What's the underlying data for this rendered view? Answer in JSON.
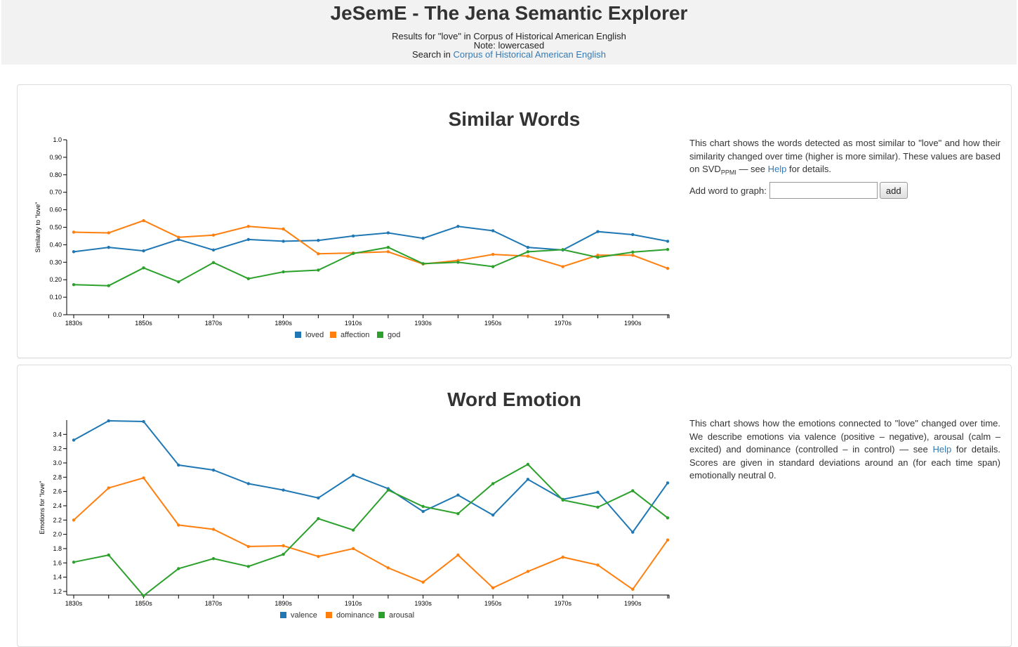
{
  "header": {
    "title": "JeSemE - The Jena Semantic Explorer",
    "results_line": "Results for \"love\" in Corpus of Historical American English",
    "note": "Note: lowercased",
    "search_prefix": "Search in ",
    "search_link": "Corpus of Historical American English"
  },
  "similar": {
    "title": "Similar Words",
    "desc_1": "This chart shows the words detected as most similar to \"love\" and how their similarity changed over time (higher is more similar). These values are based on SVD",
    "desc_sub": "PPMI",
    "desc_2": " — see ",
    "desc_help": "Help",
    "desc_3": " for details.",
    "add_label": "Add word to graph:",
    "add_input_value": "",
    "add_button": "add"
  },
  "emotion": {
    "title": "Word Emotion",
    "desc_1": "This chart shows how the emotions connected to \"love\" changed over time. We describe emotions via valence (positive – negative), arousal (calm – excited) and dominance (controlled – in control) — see ",
    "desc_help": "Help",
    "desc_2": " for details. Scores are given in standard deviations around an (for each time span) emotionally neutral 0."
  },
  "colors": {
    "blue": "#1f77b4",
    "orange": "#ff7f0e",
    "green": "#2ca02c",
    "link": "#337ab7"
  },
  "chart_data": [
    {
      "type": "line",
      "title": "",
      "ylabel": "Similarity to \"love\"",
      "xlabel": "",
      "x": [
        "1830s",
        "1840s",
        "1850s",
        "1860s",
        "1870s",
        "1880s",
        "1890s",
        "1900s",
        "1910s",
        "1920s",
        "1930s",
        "1940s",
        "1950s",
        "1960s",
        "1970s",
        "1980s",
        "1990s",
        "2000s"
      ],
      "x_tick_labels": [
        "1830s",
        "1850s",
        "1870s",
        "1890s",
        "1910s",
        "1930s",
        "1950s",
        "1970s",
        "1990s"
      ],
      "y_ticks": [
        "0.0",
        "0.10",
        "0.20",
        "0.30",
        "0.40",
        "0.50",
        "0.60",
        "0.70",
        "0.80",
        "0.90",
        "1.0"
      ],
      "ylim": [
        0,
        1
      ],
      "legend_position": "bottom",
      "series": [
        {
          "name": "loved",
          "color": "#1f77b4",
          "values": [
            0.36,
            0.385,
            0.365,
            0.43,
            0.37,
            0.43,
            0.42,
            0.425,
            0.45,
            0.468,
            0.437,
            0.505,
            0.48,
            0.385,
            0.37,
            0.475,
            0.458,
            0.42
          ]
        },
        {
          "name": "affection",
          "color": "#ff7f0e",
          "values": [
            0.472,
            0.468,
            0.538,
            0.443,
            0.455,
            0.505,
            0.49,
            0.348,
            0.353,
            0.36,
            0.29,
            0.31,
            0.345,
            0.335,
            0.275,
            0.34,
            0.34,
            0.265
          ]
        },
        {
          "name": "god",
          "color": "#2ca02c",
          "values": [
            0.172,
            0.166,
            0.268,
            0.188,
            0.298,
            0.206,
            0.245,
            0.255,
            0.35,
            0.385,
            0.292,
            0.3,
            0.275,
            0.36,
            0.372,
            0.328,
            0.358,
            0.373
          ]
        }
      ]
    },
    {
      "type": "line",
      "title": "",
      "ylabel": "Emotions for \"love\"",
      "xlabel": "",
      "x": [
        "1830s",
        "1840s",
        "1850s",
        "1860s",
        "1870s",
        "1880s",
        "1890s",
        "1900s",
        "1910s",
        "1920s",
        "1930s",
        "1940s",
        "1950s",
        "1960s",
        "1970s",
        "1980s",
        "1990s",
        "2000s"
      ],
      "x_tick_labels": [
        "1830s",
        "1850s",
        "1870s",
        "1890s",
        "1910s",
        "1930s",
        "1950s",
        "1970s",
        "1990s"
      ],
      "y_ticks": [
        "1.2",
        "1.4",
        "1.6",
        "1.8",
        "2.0",
        "2.2",
        "2.4",
        "2.6",
        "2.8",
        "3.0",
        "3.2",
        "3.4"
      ],
      "ylim": [
        1.15,
        3.6
      ],
      "legend_position": "bottom",
      "series": [
        {
          "name": "valence",
          "color": "#1f77b4",
          "values": [
            3.32,
            3.59,
            3.58,
            2.97,
            2.9,
            2.71,
            2.62,
            2.51,
            2.83,
            2.64,
            2.32,
            2.55,
            2.27,
            2.77,
            2.49,
            2.59,
            2.03,
            2.72
          ]
        },
        {
          "name": "dominance",
          "color": "#ff7f0e",
          "values": [
            2.2,
            2.65,
            2.79,
            2.13,
            2.07,
            1.83,
            1.84,
            1.69,
            1.8,
            1.53,
            1.33,
            1.71,
            1.25,
            1.48,
            1.68,
            1.57,
            1.23,
            1.92
          ]
        },
        {
          "name": "arousal",
          "color": "#2ca02c",
          "values": [
            1.61,
            1.71,
            1.14,
            1.52,
            1.66,
            1.55,
            1.72,
            2.22,
            2.06,
            2.62,
            2.39,
            2.29,
            2.71,
            2.98,
            2.48,
            2.38,
            2.61,
            2.23
          ]
        }
      ]
    }
  ]
}
